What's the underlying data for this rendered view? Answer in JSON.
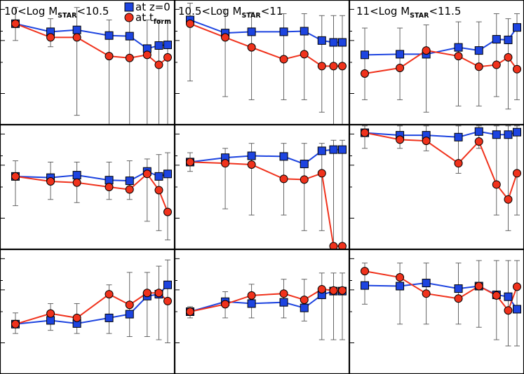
{
  "chart_data": {
    "type": "scatter",
    "layout": "3x3 grid of panels; columns = stellar-mass bins, rows share styling; y-axis logarithmic, no tick labels shown",
    "columns": [
      {
        "prefix": "10<Log M",
        "sub": "STAR",
        "suffix": "<10.5"
      },
      {
        "prefix": "10.5<Log M",
        "sub": "STAR",
        "suffix": "<11"
      },
      {
        "prefix": "11<Log M",
        "sub": "STAR",
        "suffix": "<11.5"
      }
    ],
    "legend": [
      {
        "marker": "square",
        "color": "#1d44e0",
        "pre": "at  z=0",
        "sub": ""
      },
      {
        "marker": "circle",
        "color": "#f0321c",
        "pre": "at  t",
        "sub": "form"
      }
    ],
    "colors": {
      "z0": "#1d44e0",
      "tform": "#f0321c",
      "errorbar": "#555555"
    },
    "y_scale": "log",
    "panels": [
      {
        "row": 0,
        "col": 0,
        "x": [
          0,
          1.2,
          2.1,
          3.2,
          3.9,
          4.5,
          4.9,
          5.2
        ],
        "z0": [
          0.62,
          0.49,
          0.52,
          0.43,
          0.42,
          0.22,
          0.27,
          0.28
        ],
        "tform": [
          0.62,
          0.4,
          0.4,
          0.1,
          0.07,
          0.12,
          -0.04,
          0.08
        ],
        "err_lo": [
          0.35,
          0.25,
          -0.85,
          -1.0,
          -1.0,
          -1.0,
          -1.0,
          -1.0
        ],
        "err_hi": [
          0.88,
          0.7,
          0.88,
          0.68,
          0.68,
          0.68,
          0.68,
          0.68
        ]
      },
      {
        "row": 0,
        "col": 1,
        "x": [
          0,
          1.2,
          2.1,
          3.2,
          3.9,
          4.5,
          4.9,
          5.2
        ],
        "z0": [
          0.68,
          0.47,
          0.49,
          0.49,
          0.5,
          0.35,
          0.32,
          0.32
        ],
        "tform": [
          0.62,
          0.4,
          0.24,
          0.05,
          0.13,
          -0.06,
          -0.06,
          -0.06
        ],
        "err_lo": [
          -0.3,
          -0.55,
          -0.6,
          -0.6,
          -0.6,
          -0.8,
          -1.0,
          -1.0
        ],
        "err_hi": [
          0.95,
          0.85,
          0.8,
          0.78,
          0.78,
          0.75,
          0.75,
          0.75
        ]
      },
      {
        "row": 0,
        "col": 2,
        "x": [
          0,
          1.2,
          2.1,
          3.2,
          3.9,
          4.5,
          4.9,
          5.2
        ],
        "z0": [
          0.12,
          0.13,
          0.13,
          0.24,
          0.19,
          0.37,
          0.36,
          0.56
        ],
        "tform": [
          -0.18,
          -0.09,
          0.19,
          0.1,
          -0.07,
          -0.04,
          0.08,
          -0.11
        ],
        "err_lo": [
          -0.6,
          -0.6,
          -0.8,
          -0.7,
          -0.7,
          -0.55,
          -0.75,
          -0.6
        ],
        "err_hi": [
          0.55,
          0.55,
          0.6,
          0.65,
          0.65,
          0.78,
          0.7,
          0.78
        ]
      },
      {
        "row": 1,
        "col": 0,
        "x": [
          0,
          1.2,
          2.1,
          3.2,
          3.9,
          4.5,
          4.9,
          5.2
        ],
        "z0": [
          0.17,
          0.15,
          0.19,
          0.11,
          0.1,
          0.25,
          0.17,
          0.21
        ],
        "tform": [
          0.17,
          0.09,
          0.07,
          0.0,
          -0.04,
          0.21,
          -0.05,
          -0.4
        ],
        "err_lo": [
          -0.3,
          -0.2,
          -0.25,
          -0.2,
          -0.2,
          -0.55,
          -0.7,
          -0.85
        ],
        "err_hi": [
          0.42,
          0.4,
          0.4,
          0.4,
          0.42,
          0.45,
          0.52,
          0.55
        ]
      },
      {
        "row": 1,
        "col": 1,
        "x": [
          0,
          1.2,
          2.1,
          3.2,
          3.9,
          4.5,
          4.9,
          5.2
        ],
        "z0": [
          0.4,
          0.47,
          0.5,
          0.49,
          0.37,
          0.58,
          0.6,
          0.6
        ],
        "tform": [
          0.4,
          0.38,
          0.36,
          0.13,
          0.12,
          0.22,
          -0.95,
          -0.95
        ],
        "err_lo": [
          0.25,
          -0.35,
          -0.45,
          -0.45,
          -0.7,
          -0.7,
          -1.0,
          -1.0
        ],
        "err_hi": [
          0.55,
          0.62,
          0.7,
          0.7,
          0.7,
          0.7,
          0.75,
          0.75
        ]
      },
      {
        "row": 1,
        "col": 2,
        "x": [
          0,
          1.2,
          2.1,
          3.2,
          3.9,
          4.5,
          4.9,
          5.2
        ],
        "z0": [
          0.87,
          0.83,
          0.83,
          0.8,
          0.89,
          0.84,
          0.84,
          0.88
        ],
        "tform": [
          0.87,
          0.76,
          0.74,
          0.38,
          0.73,
          0.04,
          -0.2,
          0.22
        ],
        "err_lo": [
          0.62,
          0.62,
          0.58,
          0.22,
          0.62,
          -0.45,
          -0.7,
          -0.45
        ],
        "err_hi": [
          0.98,
          0.98,
          0.98,
          0.98,
          0.98,
          0.98,
          0.98,
          0.98
        ]
      },
      {
        "row": 2,
        "col": 0,
        "x": [
          0,
          1.2,
          2.1,
          3.2,
          3.9,
          4.5,
          4.9,
          5.2
        ],
        "z0": [
          -0.2,
          -0.14,
          -0.19,
          -0.1,
          -0.04,
          0.25,
          0.28,
          0.43
        ],
        "tform": [
          -0.2,
          -0.03,
          -0.1,
          0.28,
          0.11,
          0.3,
          0.3,
          0.17
        ],
        "err_lo": [
          -0.35,
          -0.3,
          -0.35,
          -0.35,
          -0.4,
          -0.4,
          -0.45,
          -0.5
        ],
        "err_hi": [
          -0.02,
          0.13,
          0.13,
          0.43,
          0.63,
          0.63,
          0.73,
          0.83
        ]
      },
      {
        "row": 2,
        "col": 1,
        "x": [
          0,
          1.2,
          2.1,
          3.2,
          3.9,
          4.5,
          4.9,
          5.2
        ],
        "z0": [
          0.0,
          0.16,
          0.13,
          0.15,
          0.06,
          0.27,
          0.33,
          0.33
        ],
        "tform": [
          0.0,
          0.12,
          0.26,
          0.29,
          0.19,
          0.36,
          0.34,
          0.34
        ],
        "err_lo": [
          -0.1,
          -0.1,
          -0.1,
          -0.1,
          -0.15,
          -0.45,
          -0.45,
          -0.45
        ],
        "err_hi": [
          0.08,
          0.32,
          0.44,
          0.52,
          0.52,
          0.62,
          0.62,
          0.62
        ]
      },
      {
        "row": 2,
        "col": 2,
        "x": [
          0,
          1.2,
          2.1,
          3.2,
          3.9,
          4.5,
          4.9,
          5.2
        ],
        "z0": [
          0.42,
          0.41,
          0.46,
          0.37,
          0.41,
          0.27,
          0.24,
          0.04
        ],
        "tform": [
          0.65,
          0.55,
          0.29,
          0.21,
          0.41,
          0.26,
          0.02,
          0.4
        ],
        "err_lo": [
          0.12,
          -0.2,
          -0.2,
          -0.2,
          -0.25,
          -0.45,
          -0.55,
          -0.55
        ],
        "err_hi": [
          0.78,
          0.78,
          0.78,
          0.78,
          0.82,
          0.82,
          0.82,
          0.82
        ]
      }
    ]
  }
}
